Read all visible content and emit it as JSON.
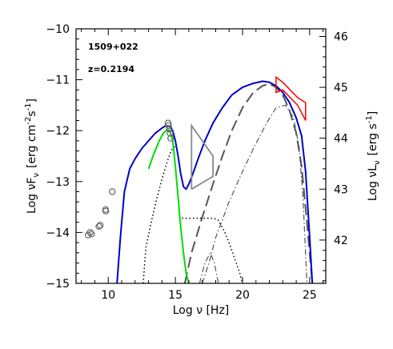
{
  "chart_data": {
    "type": "line",
    "annotations": [
      "1509+022",
      "z=0.2194"
    ],
    "xlabel": "Log ν [Hz]",
    "ylabel": "Log νF",
    "ylabel_sub": "ν",
    "ylabel_units": "[erg cm",
    "ylabel_sup1": "-2",
    "ylabel_mid": "s",
    "ylabel_sup2": "-1",
    "ylabel_end": "]",
    "y2label": "Log νL",
    "y2label_sub": "ν",
    "y2label_units": "[erg s",
    "y2label_sup": "-1",
    "y2label_end": "]",
    "xlim": [
      7.6,
      26.2
    ],
    "ylim": [
      -15,
      -10
    ],
    "y2lim": [
      41.15,
      46.15
    ],
    "x_ticks": [
      10,
      15,
      20,
      25
    ],
    "x_tick_labels": [
      "10",
      "15",
      "20",
      "25"
    ],
    "y_ticks": [
      -15,
      -14,
      -13,
      -12,
      -11,
      -10
    ],
    "y_tick_labels": [
      "−15",
      "−14",
      "−13",
      "−12",
      "−11",
      "−10"
    ],
    "y2_ticks": [
      42,
      43,
      44,
      45,
      46
    ],
    "y2_tick_labels": [
      "42",
      "43",
      "44",
      "45",
      "46"
    ],
    "colors": {
      "total": "#0000cc",
      "synchrotron": "#00dd00",
      "gamma": "#ff0000",
      "xray": "#888888",
      "components": "#555555"
    },
    "series": [
      {
        "style": "total-blue-solid",
        "x": [
          10.65,
          10.9,
          11.2,
          11.6,
          12.0,
          12.5,
          13.0,
          13.5,
          14.0,
          14.3,
          14.6,
          14.8,
          15.0,
          15.2,
          15.4,
          15.6,
          15.8,
          16.0,
          16.3,
          16.7,
          17.2,
          17.8,
          18.5,
          19.2,
          20.0,
          20.8,
          21.5,
          22.0,
          22.5,
          23.0,
          23.5,
          24.0,
          24.4,
          24.7,
          25.0,
          25.2
        ],
        "y": [
          -15.0,
          -14.1,
          -13.2,
          -12.75,
          -12.55,
          -12.35,
          -12.2,
          -12.05,
          -11.95,
          -11.9,
          -11.92,
          -12.0,
          -12.2,
          -12.5,
          -12.85,
          -13.1,
          -13.15,
          -13.05,
          -12.85,
          -12.55,
          -12.2,
          -11.85,
          -11.55,
          -11.3,
          -11.15,
          -11.07,
          -11.03,
          -11.05,
          -11.12,
          -11.25,
          -11.45,
          -11.75,
          -12.1,
          -12.8,
          -14.1,
          -15.0
        ]
      },
      {
        "style": "synchrotron-green-solid",
        "x": [
          13.0,
          13.4,
          13.8,
          14.1,
          14.4,
          14.6,
          14.8,
          15.0,
          15.2,
          15.4,
          15.6,
          15.8,
          16.0
        ],
        "y": [
          -12.75,
          -12.45,
          -12.2,
          -12.05,
          -11.98,
          -12.0,
          -12.2,
          -12.7,
          -13.3,
          -13.9,
          -14.4,
          -14.8,
          -15.0
        ]
      },
      {
        "style": "disk-dotted",
        "x": [
          12.6,
          12.8,
          13.2,
          13.6,
          14.0,
          14.4,
          14.7,
          15.0
        ],
        "y": [
          -15.0,
          -14.3,
          -13.8,
          -13.35,
          -12.95,
          -12.6,
          -12.38,
          -12.3
        ]
      },
      {
        "style": "corona-dotted",
        "x": [
          15.5,
          16.0,
          17.0,
          17.8,
          18.2,
          18.6,
          19.0,
          19.4,
          19.8,
          20.0
        ],
        "y": [
          -13.72,
          -13.72,
          -13.72,
          -13.72,
          -13.76,
          -13.95,
          -14.2,
          -14.5,
          -14.8,
          -15.0
        ]
      },
      {
        "style": "ssc-dashed",
        "x": [
          15.7,
          16.2,
          17.0,
          17.8,
          18.5,
          19.2,
          20.0,
          20.8,
          21.5,
          22.0,
          22.5,
          23.0,
          23.5,
          24.0,
          24.4,
          24.8,
          25.2
        ],
        "y": [
          -15.0,
          -14.4,
          -13.7,
          -13.05,
          -12.5,
          -12.0,
          -11.55,
          -11.25,
          -11.12,
          -11.08,
          -11.15,
          -11.3,
          -11.6,
          -12.05,
          -12.7,
          -13.8,
          -15.0
        ]
      },
      {
        "style": "ec-dashdot",
        "x": [
          17.0,
          17.5,
          18.0,
          19.0,
          20.0,
          21.0,
          21.8,
          22.5,
          23.2,
          23.8,
          24.2,
          24.5,
          24.8
        ],
        "y": [
          -15.0,
          -14.6,
          -14.1,
          -13.4,
          -12.8,
          -12.25,
          -11.85,
          -11.55,
          -11.5,
          -11.75,
          -12.3,
          -13.3,
          -15.0
        ]
      },
      {
        "style": "ec-dashdot-low",
        "x": [
          16.8,
          17.2,
          17.6,
          17.9,
          18.2
        ],
        "y": [
          -15.0,
          -14.6,
          -14.4,
          -14.6,
          -15.0
        ]
      }
    ],
    "data_points": {
      "x": [
        8.5,
        8.65,
        8.75,
        9.3,
        9.4,
        9.8,
        9.82,
        10.3,
        14.45,
        14.5,
        14.55,
        14.6,
        14.65
      ],
      "y": [
        -14.05,
        -14.0,
        -14.03,
        -13.88,
        -13.86,
        -13.55,
        -13.58,
        -13.2,
        -11.85,
        -11.9,
        -11.97,
        -12.05,
        -12.15
      ]
    },
    "xray_bowtie": {
      "x": [
        16.2,
        16.2,
        17.8,
        17.8,
        16.2
      ],
      "y": [
        -13.15,
        -11.9,
        -12.5,
        -12.9,
        -13.15
      ]
    },
    "gamma_bowtie": {
      "x": [
        22.5,
        23.0,
        24.1,
        24.7,
        24.7,
        24.1,
        23.0,
        22.5
      ],
      "y": [
        -10.95,
        -11.05,
        -11.35,
        -11.45,
        -11.8,
        -11.5,
        -11.2,
        -11.25
      ]
    }
  }
}
